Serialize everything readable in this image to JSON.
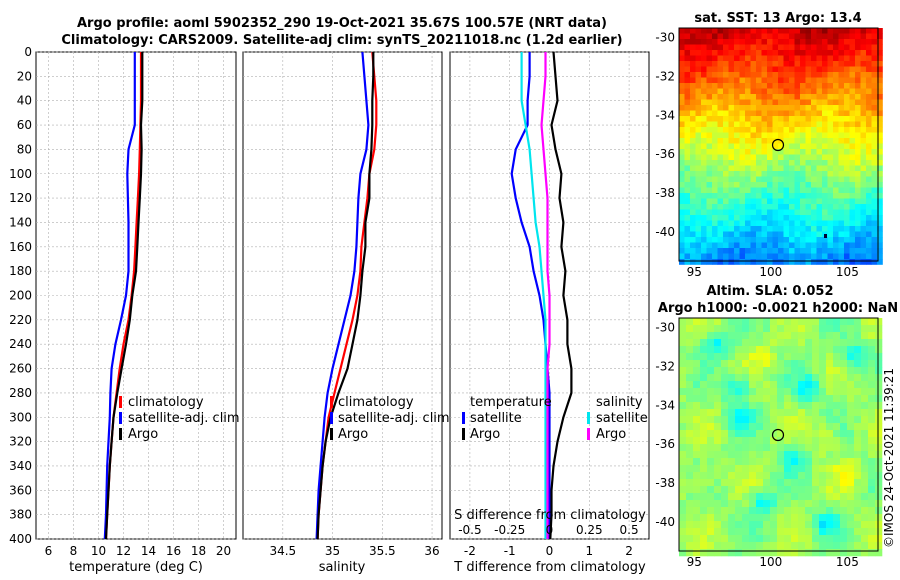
{
  "figure": {
    "title_line1": "Argo profile: aoml 5902352_290 19-Oct-2021 35.67S 100.57E (NRT data)",
    "title_line2": "Climatology: CARS2009. Satellite-adj clim: synTS_20211018.nc (1.2d earlier)",
    "credit": "©IMOS 24-Oct-2021 11:39:21"
  },
  "colors": {
    "climatology": "#ff0000",
    "satellite": "#0000ff",
    "argo": "#000000",
    "sat_diff_s": "#00e5ee",
    "argo_diff_s": "#ff00ff",
    "grid": "#b0b0b0"
  },
  "chart_data": [
    {
      "id": "temperature",
      "type": "line",
      "xlabel": "temperature (deg C)",
      "ylabel": "",
      "xlim": [
        5,
        21
      ],
      "ylim": [
        0,
        400
      ],
      "y_reversed": true,
      "xticks": [
        6,
        8,
        10,
        12,
        14,
        16,
        18,
        20
      ],
      "yticks": [
        0,
        20,
        40,
        60,
        80,
        100,
        120,
        140,
        160,
        180,
        200,
        220,
        240,
        260,
        280,
        300,
        320,
        340,
        360,
        380,
        400
      ],
      "legend": [
        "climatology",
        "satellite-adj. clim",
        "Argo"
      ],
      "series": [
        {
          "name": "climatology",
          "color": "red",
          "points": [
            [
              13.4,
              0
            ],
            [
              13.4,
              20
            ],
            [
              13.4,
              40
            ],
            [
              13.35,
              60
            ],
            [
              13.3,
              80
            ],
            [
              13.25,
              100
            ],
            [
              13.15,
              120
            ],
            [
              13.05,
              140
            ],
            [
              12.95,
              160
            ],
            [
              12.85,
              180
            ],
            [
              12.65,
              200
            ],
            [
              12.4,
              220
            ],
            [
              12.0,
              240
            ],
            [
              11.7,
              260
            ],
            [
              11.45,
              280
            ],
            [
              11.2,
              300
            ],
            [
              11.05,
              320
            ],
            [
              10.9,
              340
            ],
            [
              10.8,
              360
            ],
            [
              10.7,
              380
            ],
            [
              10.6,
              400
            ]
          ]
        },
        {
          "name": "satellite-adj. clim",
          "color": "blue",
          "points": [
            [
              12.9,
              0
            ],
            [
              12.9,
              20
            ],
            [
              12.9,
              40
            ],
            [
              12.9,
              60
            ],
            [
              12.4,
              80
            ],
            [
              12.3,
              100
            ],
            [
              12.35,
              120
            ],
            [
              12.4,
              140
            ],
            [
              12.4,
              160
            ],
            [
              12.4,
              180
            ],
            [
              12.2,
              200
            ],
            [
              11.8,
              220
            ],
            [
              11.35,
              240
            ],
            [
              11.05,
              260
            ],
            [
              10.95,
              280
            ],
            [
              10.9,
              300
            ],
            [
              10.8,
              320
            ],
            [
              10.7,
              340
            ],
            [
              10.65,
              360
            ],
            [
              10.6,
              380
            ],
            [
              10.5,
              400
            ]
          ]
        },
        {
          "name": "Argo",
          "color": "black",
          "points": [
            [
              13.5,
              0
            ],
            [
              13.5,
              20
            ],
            [
              13.5,
              40
            ],
            [
              13.4,
              60
            ],
            [
              13.45,
              80
            ],
            [
              13.4,
              100
            ],
            [
              13.3,
              120
            ],
            [
              13.2,
              140
            ],
            [
              13.1,
              160
            ],
            [
              13.0,
              180
            ],
            [
              12.7,
              200
            ],
            [
              12.5,
              220
            ],
            [
              12.2,
              240
            ],
            [
              11.85,
              260
            ],
            [
              11.5,
              280
            ],
            [
              11.2,
              300
            ],
            [
              11.05,
              320
            ],
            [
              10.9,
              340
            ],
            [
              10.8,
              360
            ],
            [
              10.7,
              380
            ],
            [
              10.6,
              400
            ]
          ]
        }
      ]
    },
    {
      "id": "salinity",
      "type": "line",
      "xlabel": "salinity",
      "ylabel": "",
      "xlim": [
        34.1,
        36.1
      ],
      "ylim": [
        0,
        400
      ],
      "y_reversed": true,
      "xticks": [
        34.5,
        35,
        35.5,
        36
      ],
      "legend": [
        "climatology",
        "satellite-adj. clim",
        "Argo"
      ],
      "series": [
        {
          "name": "climatology",
          "color": "red",
          "points": [
            [
              35.4,
              0
            ],
            [
              35.42,
              20
            ],
            [
              35.44,
              40
            ],
            [
              35.44,
              60
            ],
            [
              35.42,
              80
            ],
            [
              35.37,
              100
            ],
            [
              35.35,
              120
            ],
            [
              35.32,
              140
            ],
            [
              35.29,
              160
            ],
            [
              35.28,
              180
            ],
            [
              35.25,
              200
            ],
            [
              35.2,
              220
            ],
            [
              35.14,
              240
            ],
            [
              35.08,
              260
            ],
            [
              35.02,
              280
            ],
            [
              34.96,
              300
            ],
            [
              34.93,
              320
            ],
            [
              34.9,
              340
            ],
            [
              34.88,
              360
            ],
            [
              34.86,
              380
            ],
            [
              34.85,
              400
            ]
          ]
        },
        {
          "name": "satellite-adj. clim",
          "color": "blue",
          "points": [
            [
              35.3,
              0
            ],
            [
              35.32,
              20
            ],
            [
              35.34,
              40
            ],
            [
              35.36,
              60
            ],
            [
              35.34,
              80
            ],
            [
              35.28,
              100
            ],
            [
              35.26,
              120
            ],
            [
              35.25,
              140
            ],
            [
              35.24,
              160
            ],
            [
              35.22,
              180
            ],
            [
              35.18,
              200
            ],
            [
              35.12,
              220
            ],
            [
              35.06,
              240
            ],
            [
              35.0,
              260
            ],
            [
              34.95,
              280
            ],
            [
              34.92,
              300
            ],
            [
              34.9,
              320
            ],
            [
              34.88,
              340
            ],
            [
              34.86,
              360
            ],
            [
              34.85,
              380
            ],
            [
              34.84,
              400
            ]
          ]
        },
        {
          "name": "Argo",
          "color": "black",
          "points": [
            [
              35.41,
              0
            ],
            [
              35.41,
              20
            ],
            [
              35.4,
              40
            ],
            [
              35.4,
              60
            ],
            [
              35.39,
              80
            ],
            [
              35.37,
              100
            ],
            [
              35.37,
              120
            ],
            [
              35.33,
              140
            ],
            [
              35.33,
              160
            ],
            [
              35.3,
              180
            ],
            [
              35.28,
              200
            ],
            [
              35.25,
              220
            ],
            [
              35.2,
              240
            ],
            [
              35.15,
              260
            ],
            [
              35.06,
              280
            ],
            [
              34.98,
              300
            ],
            [
              34.93,
              320
            ],
            [
              34.9,
              340
            ],
            [
              34.88,
              360
            ],
            [
              34.86,
              380
            ],
            [
              34.85,
              400
            ]
          ]
        }
      ]
    },
    {
      "id": "difference",
      "type": "line",
      "xlabel": "T difference from climatology",
      "top_xlabel": "S difference from climatology",
      "xlim": [
        -2.5,
        2.5
      ],
      "ylim": [
        0,
        400
      ],
      "y_reversed": true,
      "xticks": [
        -2,
        -1,
        0,
        1,
        2
      ],
      "top_xlim": [
        -0.625,
        0.625
      ],
      "top_xticks": [
        "-0.5",
        "-0.25",
        "0",
        "0.25",
        "0.5"
      ],
      "legend_left": {
        "title": "temperature",
        "items": [
          "satellite",
          "Argo"
        ]
      },
      "legend_right": {
        "title": "salinity",
        "items": [
          "satellite",
          "Argo"
        ]
      },
      "series": [
        {
          "name": "satellite T",
          "color": "blue",
          "points": [
            [
              -0.5,
              0
            ],
            [
              -0.5,
              20
            ],
            [
              -0.55,
              40
            ],
            [
              -0.55,
              60
            ],
            [
              -0.85,
              80
            ],
            [
              -0.95,
              100
            ],
            [
              -0.85,
              120
            ],
            [
              -0.7,
              140
            ],
            [
              -0.5,
              160
            ],
            [
              -0.4,
              180
            ],
            [
              -0.25,
              200
            ],
            [
              -0.15,
              220
            ],
            [
              -0.1,
              240
            ],
            [
              -0.05,
              260
            ],
            [
              0.0,
              280
            ],
            [
              0.0,
              300
            ],
            [
              0.0,
              320
            ],
            [
              0.0,
              340
            ],
            [
              0.0,
              360
            ],
            [
              0.0,
              380
            ],
            [
              0.0,
              400
            ]
          ]
        },
        {
          "name": "Argo T",
          "color": "black",
          "points": [
            [
              0.1,
              0
            ],
            [
              0.15,
              20
            ],
            [
              0.2,
              40
            ],
            [
              0.05,
              60
            ],
            [
              0.15,
              80
            ],
            [
              0.3,
              100
            ],
            [
              0.25,
              120
            ],
            [
              0.35,
              140
            ],
            [
              0.3,
              160
            ],
            [
              0.4,
              180
            ],
            [
              0.35,
              200
            ],
            [
              0.45,
              220
            ],
            [
              0.45,
              240
            ],
            [
              0.55,
              260
            ],
            [
              0.55,
              280
            ],
            [
              0.35,
              300
            ],
            [
              0.2,
              320
            ],
            [
              0.1,
              340
            ],
            [
              0.05,
              360
            ],
            [
              0.05,
              380
            ],
            [
              0.02,
              400
            ]
          ]
        },
        {
          "name": "satellite S",
          "color": "cyan",
          "points": [
            [
              -0.7,
              0
            ],
            [
              -0.7,
              20
            ],
            [
              -0.7,
              40
            ],
            [
              -0.6,
              60
            ],
            [
              -0.5,
              80
            ],
            [
              -0.45,
              100
            ],
            [
              -0.4,
              120
            ],
            [
              -0.35,
              140
            ],
            [
              -0.25,
              160
            ],
            [
              -0.2,
              180
            ],
            [
              -0.15,
              200
            ],
            [
              -0.1,
              220
            ],
            [
              -0.1,
              240
            ],
            [
              -0.1,
              260
            ],
            [
              -0.1,
              280
            ],
            [
              -0.1,
              300
            ],
            [
              -0.1,
              320
            ],
            [
              -0.1,
              340
            ],
            [
              -0.1,
              360
            ],
            [
              -0.1,
              380
            ],
            [
              -0.1,
              400
            ]
          ]
        },
        {
          "name": "Argo S",
          "color": "magenta",
          "points": [
            [
              -0.1,
              0
            ],
            [
              -0.1,
              20
            ],
            [
              -0.15,
              40
            ],
            [
              -0.2,
              60
            ],
            [
              -0.15,
              80
            ],
            [
              -0.1,
              100
            ],
            [
              -0.05,
              120
            ],
            [
              -0.05,
              140
            ],
            [
              -0.05,
              160
            ],
            [
              -0.05,
              180
            ],
            [
              0.0,
              200
            ],
            [
              0.0,
              220
            ],
            [
              0.0,
              240
            ],
            [
              -0.05,
              260
            ],
            [
              -0.05,
              280
            ],
            [
              -0.05,
              300
            ],
            [
              -0.05,
              320
            ],
            [
              -0.05,
              340
            ],
            [
              -0.05,
              360
            ],
            [
              -0.05,
              380
            ],
            [
              -0.05,
              400
            ]
          ]
        }
      ]
    },
    {
      "id": "sst_map",
      "type": "heatmap",
      "title": "sat. SST: 13 Argo: 13.4",
      "xlim": [
        94,
        107
      ],
      "ylim": [
        -41.5,
        -29.5
      ],
      "xticks": [
        "95",
        "100",
        "105"
      ],
      "yticks": [
        "-30",
        "-32",
        "-34",
        "-36",
        "-38",
        "-40"
      ],
      "marker": {
        "lon": 100.57,
        "lat": -35.67
      }
    },
    {
      "id": "sla_map",
      "type": "heatmap",
      "title_line1": "Altim. SLA: 0.052",
      "title_line2": "Argo h1000: -0.0021 h2000: NaN",
      "xlim": [
        94,
        107
      ],
      "ylim": [
        -41.5,
        -29.5
      ],
      "xticks": [
        "95",
        "100",
        "105"
      ],
      "yticks": [
        "-30",
        "-32",
        "-34",
        "-36",
        "-38",
        "-40"
      ],
      "marker": {
        "lon": 100.57,
        "lat": -35.67
      }
    }
  ]
}
